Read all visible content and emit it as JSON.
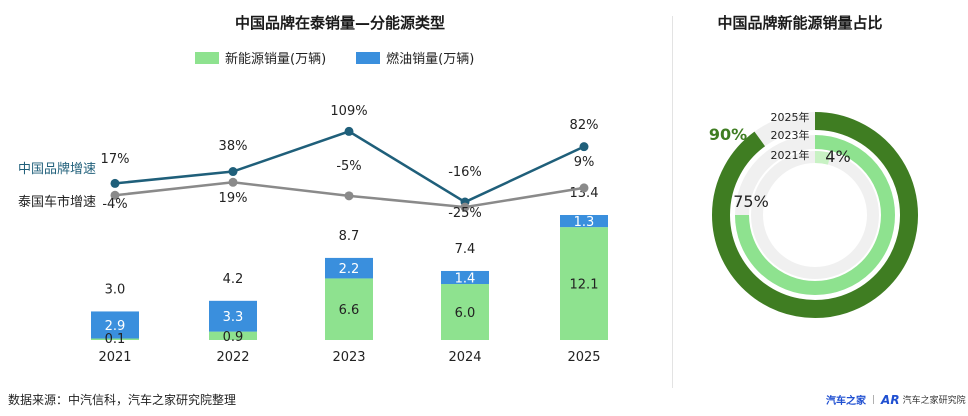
{
  "left_title": "中国品牌在泰销量—分能源类型",
  "right_title": "中国品牌新能源销量占比",
  "legend": {
    "nev_label": "新能源销量(万辆)",
    "ice_label": "燃油销量(万辆)"
  },
  "colors": {
    "nev": "#8ee28f",
    "ice": "#3a8fdd",
    "line_cn": "#1f5f7a",
    "line_th": "#8a8a8a",
    "ring_2025": "#3f7d22",
    "ring_2023": "#8ee28f",
    "ring_2021": "#c8f2c4",
    "ring_bg": "#f0f0f0"
  },
  "chart_data": [
    {
      "type": "bar",
      "stacked": true,
      "title": "中国品牌在泰销量—分能源类型",
      "categories": [
        "2021",
        "2022",
        "2023",
        "2024",
        "2025"
      ],
      "series": [
        {
          "name": "新能源销量(万辆)",
          "values": [
            0.1,
            0.9,
            6.6,
            6.0,
            12.1
          ],
          "labels": [
            "0.1",
            "0.9",
            "6.6",
            "6.0",
            "12.1"
          ]
        },
        {
          "name": "燃油销量(万辆)",
          "values": [
            2.9,
            3.3,
            2.2,
            1.4,
            1.3
          ],
          "labels": [
            "2.9",
            "3.3",
            "2.2",
            "1.4",
            "1.3"
          ]
        }
      ],
      "totals": [
        "3.0",
        "4.2",
        "8.7",
        "7.4",
        "13.4"
      ],
      "ylim": [
        0,
        13.4
      ]
    },
    {
      "type": "line",
      "categories": [
        "2021",
        "2022",
        "2023",
        "2024",
        "2025"
      ],
      "series": [
        {
          "name": "中国品牌增速",
          "values": [
            17,
            38,
            109,
            -16,
            82
          ],
          "labels": [
            "17%",
            "38%",
            "109%",
            "-16%",
            "82%"
          ]
        },
        {
          "name": "泰国车市增速",
          "values": [
            -4,
            19,
            -5,
            -25,
            9
          ],
          "labels": [
            "-4%",
            "19%",
            "-5%",
            "-25%",
            "9%"
          ]
        }
      ]
    },
    {
      "type": "pie",
      "title": "中国品牌新能源销量占比",
      "rings": [
        {
          "label": "2025年",
          "value": 90,
          "value_label": "90%"
        },
        {
          "label": "2023年",
          "value": 75,
          "value_label": "75%"
        },
        {
          "label": "2021年",
          "value": 4,
          "value_label": "4%"
        }
      ]
    }
  ],
  "source": "数据来源：中汽信科，汽车之家研究院整理",
  "logo": {
    "autohome": "汽车之家",
    "research": "汽车之家研究院"
  }
}
